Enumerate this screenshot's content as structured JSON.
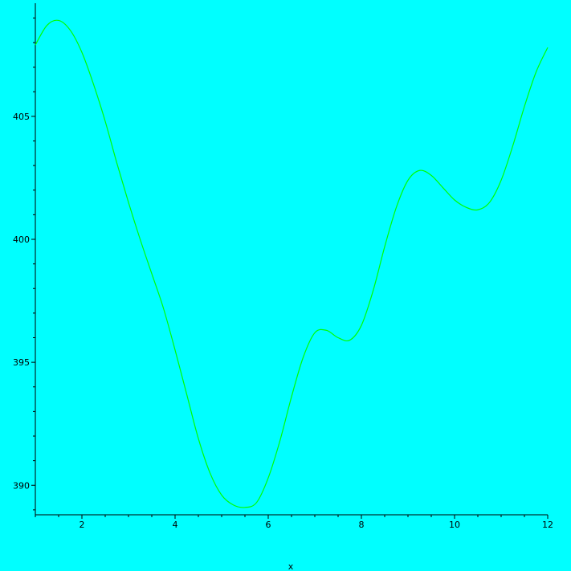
{
  "colors": {
    "background": "#00ffff",
    "curve": "#00ff00",
    "axis": "#000000"
  },
  "chart_data": {
    "type": "line",
    "xlabel": "x",
    "ylabel": "",
    "xlim": [
      1,
      12
    ],
    "ylim": [
      388.8,
      409.6
    ],
    "xticks": [
      2,
      4,
      6,
      8,
      10,
      12
    ],
    "yticks": [
      390,
      395,
      400,
      405
    ],
    "xtick_labels": [
      "2",
      "4",
      "6",
      "8",
      "10",
      "12"
    ],
    "ytick_labels": [
      "390",
      "395",
      "400",
      "405"
    ],
    "grid": false,
    "series": [
      {
        "x": [
          1.0,
          1.25,
          1.5,
          1.75,
          2.0,
          2.25,
          2.5,
          2.75,
          3.0,
          3.25,
          3.5,
          3.75,
          4.0,
          4.25,
          4.5,
          4.75,
          5.0,
          5.25,
          5.5,
          5.75,
          6.0,
          6.25,
          6.5,
          6.75,
          7.0,
          7.25,
          7.5,
          7.75,
          8.0,
          8.25,
          8.5,
          8.75,
          9.0,
          9.25,
          9.5,
          9.75,
          10.0,
          10.25,
          10.5,
          10.75,
          11.0,
          11.25,
          11.5,
          11.75,
          12.0
        ],
        "y": [
          407.9,
          408.7,
          408.9,
          408.5,
          407.6,
          406.3,
          404.8,
          403.1,
          401.5,
          400.0,
          398.6,
          397.2,
          395.5,
          393.7,
          391.9,
          390.5,
          389.6,
          389.2,
          389.1,
          389.3,
          390.3,
          391.8,
          393.6,
          395.2,
          396.2,
          396.3,
          396.0,
          395.9,
          396.5,
          397.9,
          399.7,
          401.3,
          402.4,
          402.8,
          402.6,
          402.1,
          401.6,
          401.3,
          401.2,
          401.5,
          402.4,
          403.8,
          405.4,
          406.8,
          407.8
        ]
      }
    ]
  }
}
